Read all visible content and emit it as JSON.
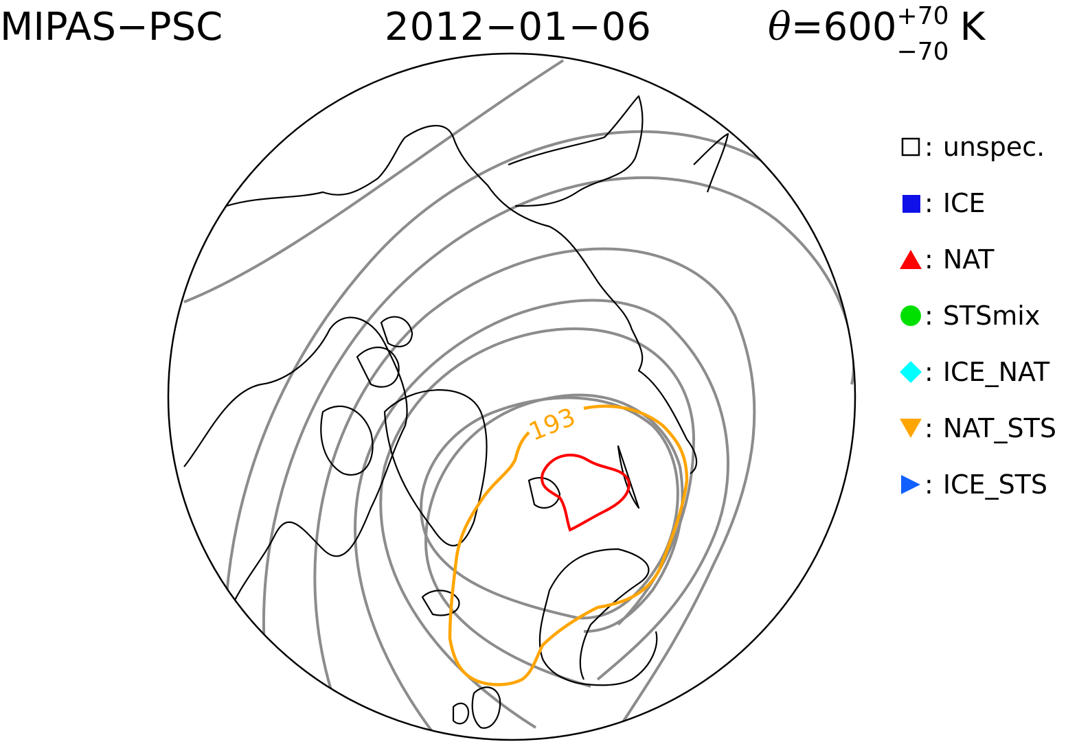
{
  "header": {
    "instrument": "MIPAS−PSC",
    "date": "2012−01−06",
    "theta_symbol": "θ",
    "theta_value": "=600",
    "theta_plus": "+70",
    "theta_minus": "−70",
    "theta_unit": "K"
  },
  "contour": {
    "label": "193",
    "colors": {
      "background": "#808080",
      "orange": "#ffa500",
      "red": "#ff0000",
      "coast": "#000000"
    }
  },
  "legend": {
    "colon": ":",
    "items": [
      {
        "label": "unspec.",
        "symbol": "square-open",
        "color": "#000000"
      },
      {
        "label": "ICE",
        "symbol": "square-filled",
        "color": "#1010e8"
      },
      {
        "label": "NAT",
        "symbol": "triangle-up",
        "color": "#ff0000"
      },
      {
        "label": "STSmix",
        "symbol": "circle",
        "color": "#00e000"
      },
      {
        "label": "ICE_NAT",
        "symbol": "diamond",
        "color": "#00ffff"
      },
      {
        "label": "NAT_STS",
        "symbol": "triangle-down",
        "color": "#ffa500"
      },
      {
        "label": "ICE_STS",
        "symbol": "triangle-right",
        "color": "#1060ff"
      }
    ]
  }
}
